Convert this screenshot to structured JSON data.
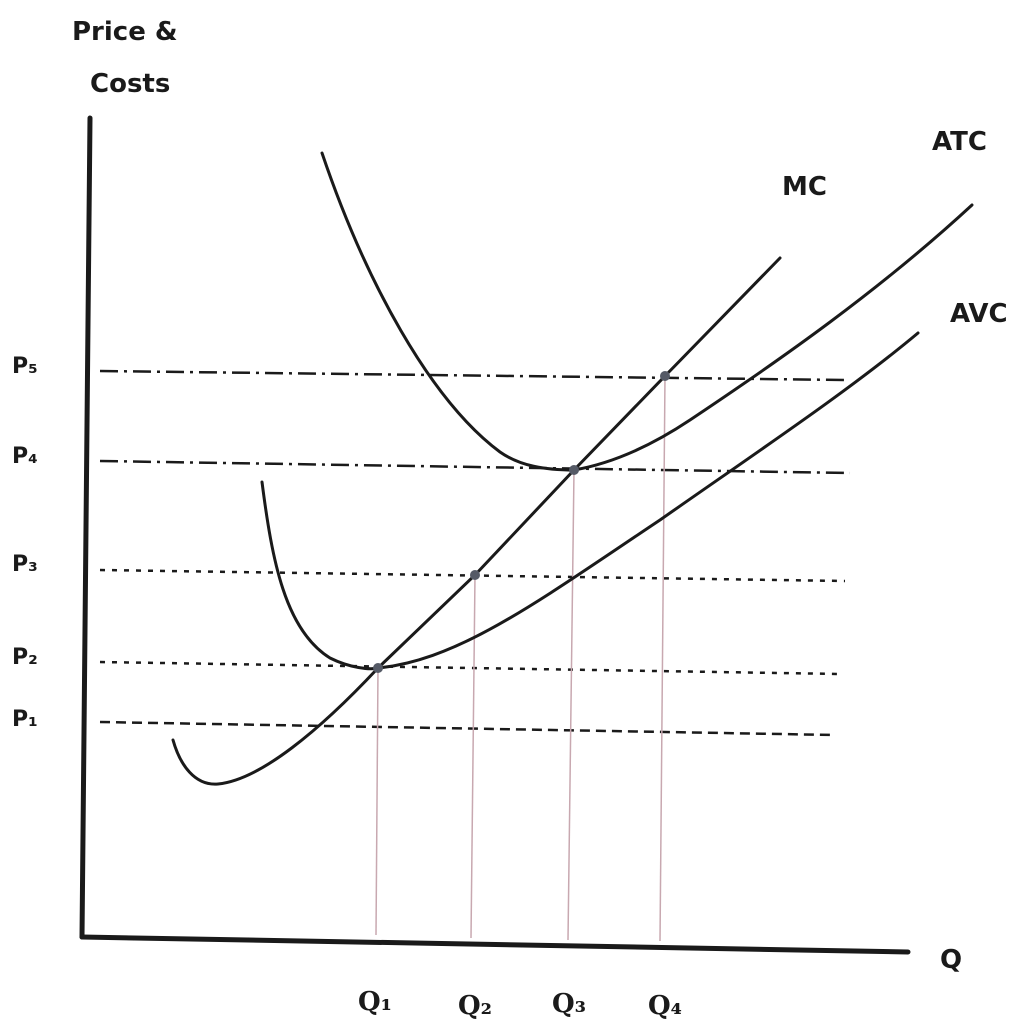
{
  "y_axis_title_line1": "Price &",
  "y_axis_title_line2": "Costs",
  "x_axis_title": "Q",
  "curves": [
    {
      "name": "MC"
    },
    {
      "name": "ATC"
    },
    {
      "name": "AVC"
    }
  ],
  "price_levels": [
    {
      "label": "P₁",
      "style": "dashed"
    },
    {
      "label": "P₂",
      "style": "dotted"
    },
    {
      "label": "P₃",
      "style": "dotted"
    },
    {
      "label": "P₄",
      "style": "dash-dot"
    },
    {
      "label": "P₅",
      "style": "dash-dot"
    }
  ],
  "quantity_levels": [
    {
      "label": "Q₁"
    },
    {
      "label": "Q₂"
    },
    {
      "label": "Q₃"
    },
    {
      "label": "Q₄"
    }
  ],
  "colors": {
    "ink": "#1a1a1a",
    "guide": "#c8a8b0",
    "point": "#555a66"
  }
}
